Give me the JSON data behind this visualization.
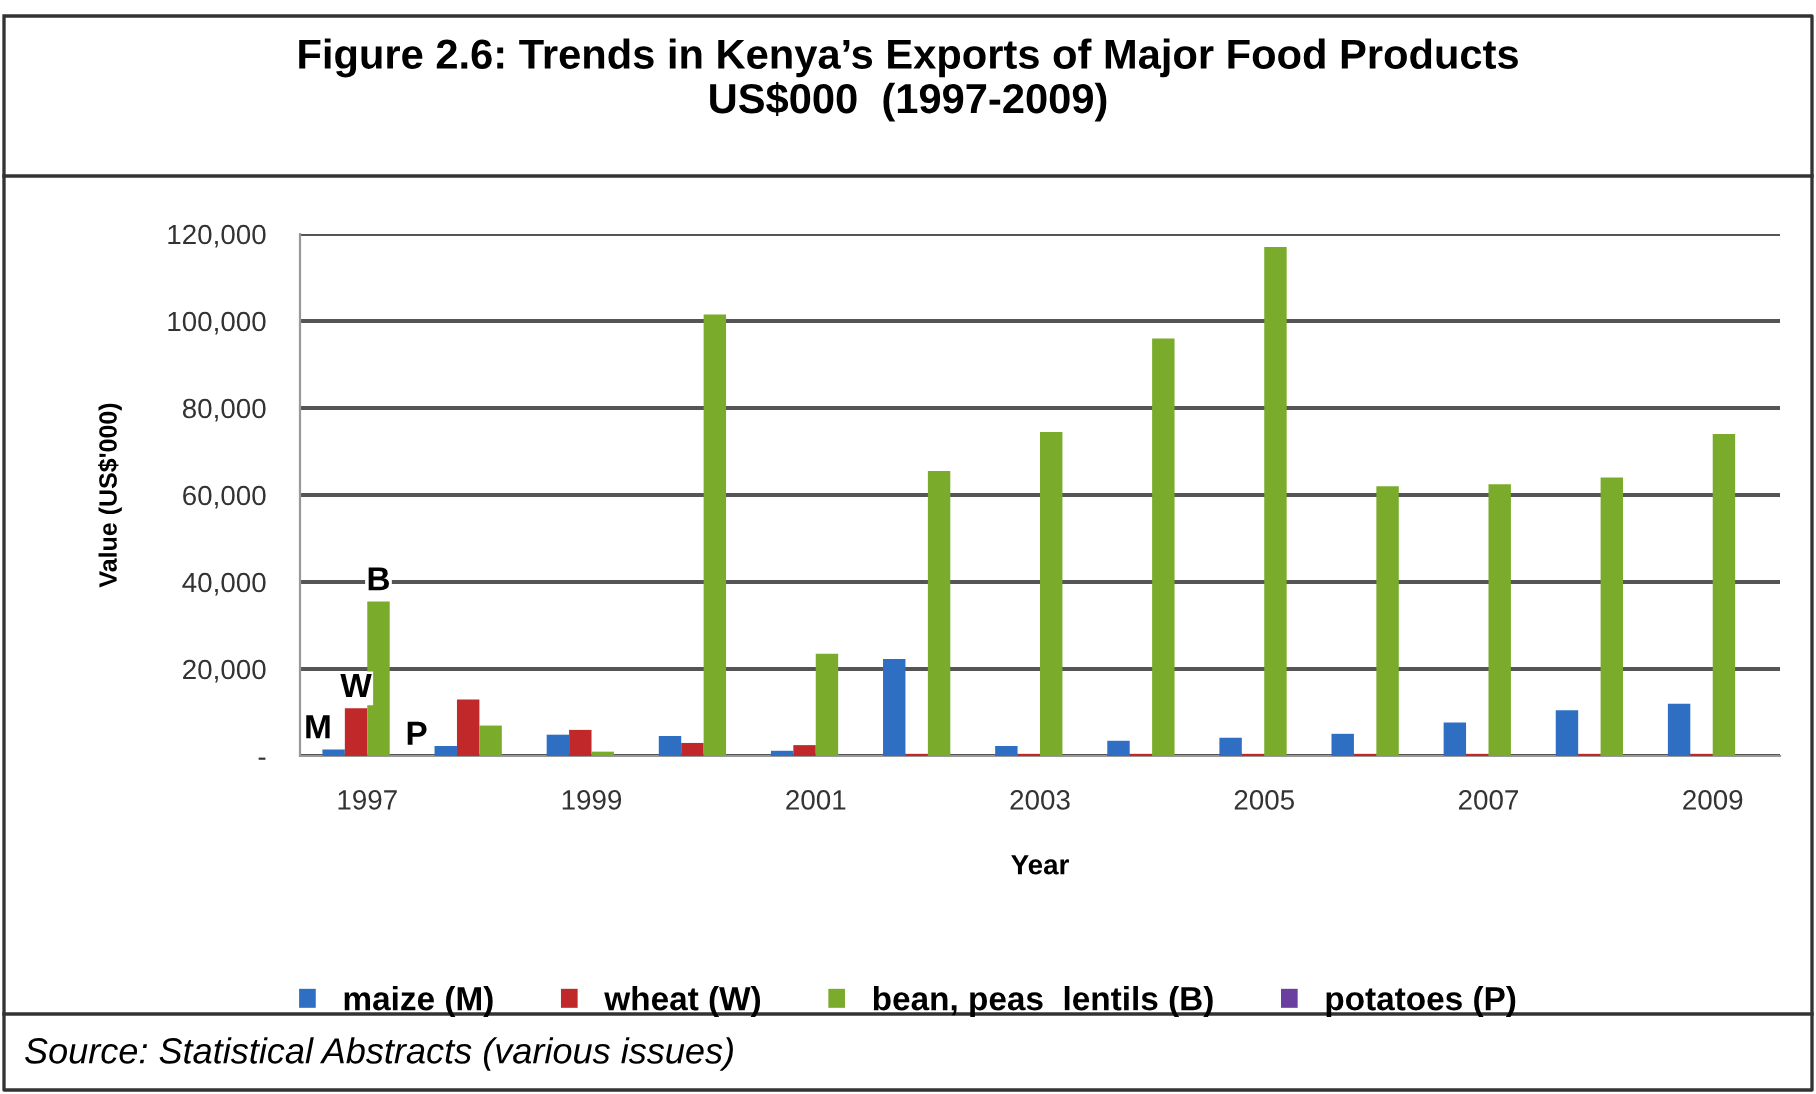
{
  "chart_data": {
    "type": "bar",
    "title": "Figure 2.6: Trends in Kenya’s Exports of Major Food Products\nUS$000  (1997-2009)",
    "xlabel": "Year",
    "ylabel": "Value (US$'000)",
    "categories": [
      "1997",
      null,
      "1999",
      null,
      "2001",
      null,
      "2003",
      null,
      "2005",
      null,
      "2007",
      null,
      "2009"
    ],
    "series": [
      {
        "name": "maize (M)",
        "color": "#2e6fc4",
        "values": [
          1500,
          2300,
          4900,
          4600,
          1200,
          22300,
          2300,
          3500,
          4200,
          5100,
          7700,
          10500,
          12000
        ]
      },
      {
        "name": "wheat (W)",
        "color": "#c0282a",
        "values": [
          11000,
          13000,
          6000,
          3000,
          2500,
          500,
          500,
          500,
          500,
          500,
          500,
          500,
          500
        ]
      },
      {
        "name": "bean, peas  lentils (B)",
        "color": "#7aab2a",
        "values": [
          35500,
          7000,
          1000,
          101500,
          23500,
          65500,
          74500,
          96000,
          117000,
          62000,
          62500,
          64000,
          74000
        ]
      },
      {
        "name": "potatoes (P)",
        "color": "#6a3fa0",
        "values": [
          0,
          0,
          0,
          0,
          0,
          0,
          0,
          0,
          0,
          0,
          0,
          0,
          0
        ]
      }
    ],
    "ylim": [
      0,
      120000
    ],
    "yticks": [
      {
        "value": 0,
        "label": "-"
      },
      {
        "value": 20000,
        "label": "20,000"
      },
      {
        "value": 40000,
        "label": "40,000"
      },
      {
        "value": 60000,
        "label": "60,000"
      },
      {
        "value": 80000,
        "label": "80,000"
      },
      {
        "value": 100000,
        "label": "100,000"
      },
      {
        "value": 120000,
        "label": "120,000"
      }
    ],
    "grid": "y",
    "legend": "bottom",
    "annotations": [
      {
        "text": "M",
        "x": "1997",
        "y": 1500
      },
      {
        "text": "W",
        "x": "1997",
        "y": 11000
      },
      {
        "text": "B",
        "x": "1997",
        "y": 35500
      },
      {
        "text": "P",
        "x": "1997",
        "y": 0
      },
      "Source: Statistical Abstracts (various issues)"
    ]
  }
}
